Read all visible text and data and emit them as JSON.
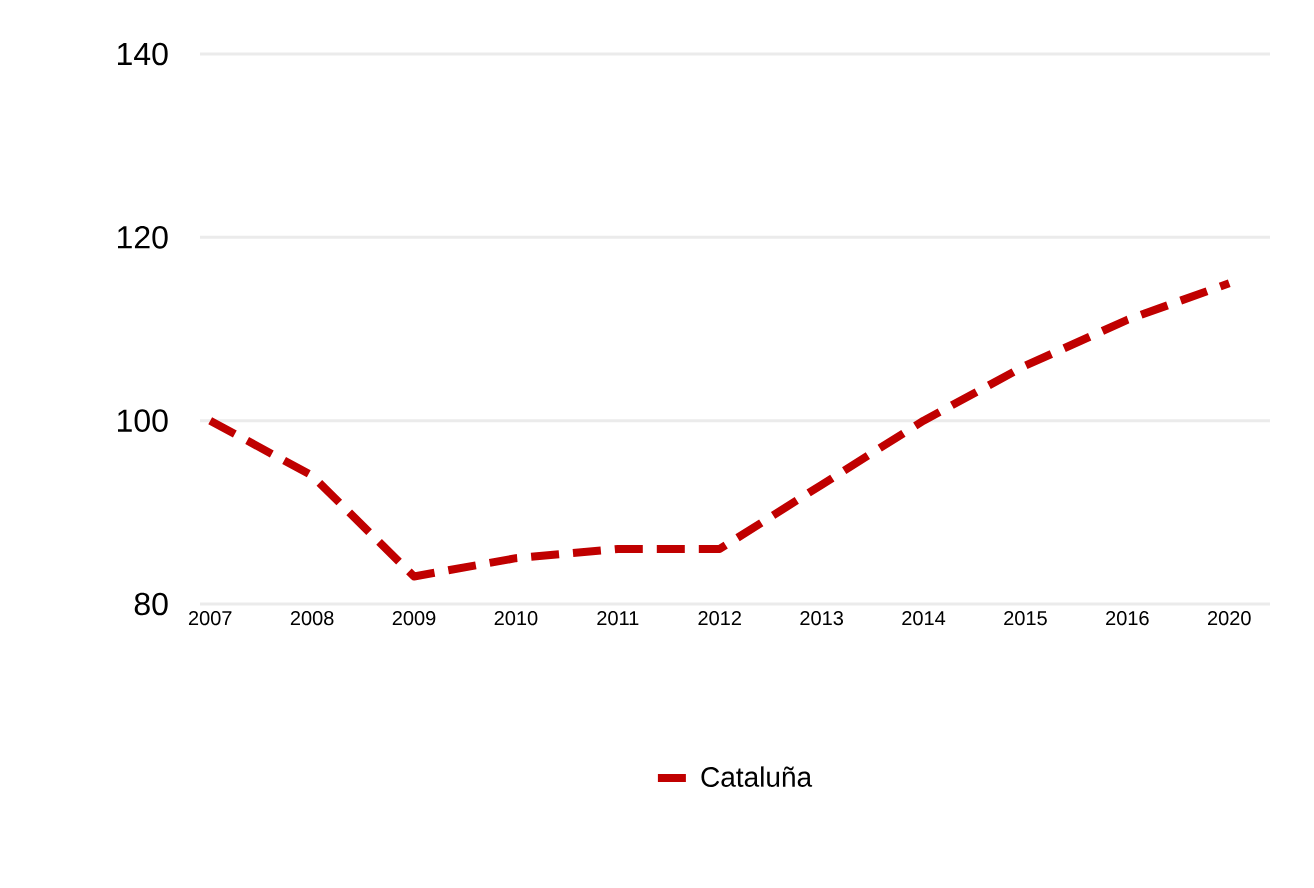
{
  "chart_data": {
    "type": "line",
    "categories": [
      "2007",
      "2008",
      "2009",
      "2010",
      "2011",
      "2012",
      "2013",
      "2014",
      "2015",
      "2016",
      "2020"
    ],
    "series": [
      {
        "name": "Cataluña",
        "color": "#c00000",
        "values": [
          100,
          94,
          83,
          85,
          86,
          86,
          93,
          100,
          106,
          111,
          115
        ]
      }
    ],
    "ylim": [
      80,
      140
    ],
    "yticks": [
      80,
      100,
      120,
      140
    ],
    "grid": "y",
    "legend": "bottom",
    "line_style": "dashed",
    "marker": "none"
  }
}
